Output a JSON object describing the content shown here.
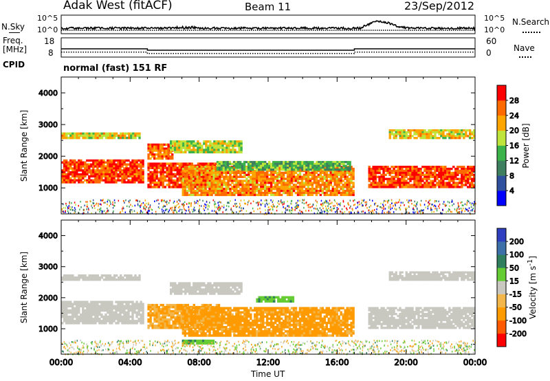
{
  "header": {
    "station": "Adak West (fitACF)",
    "beam": "Beam 11",
    "date": "23/Sep/2012"
  },
  "aux_panels": {
    "nsky_label": "N.Sky",
    "nsearch_label": "N.Search",
    "noise_ticks": [
      "10^5",
      "10^0"
    ],
    "freq_label": "Freq.",
    "freq_unit": "[MHz]",
    "freq_ticks": [
      "18",
      "8"
    ],
    "nave_label": "Nave",
    "nave_ticks": [
      "60",
      "0"
    ],
    "cpid_label": "CPID",
    "cpid_value": "normal (fast) 151 RF"
  },
  "colors": {
    "power_scale": [
      "#0000ff",
      "#2f4f9f",
      "#3e7f5f",
      "#3cb24a",
      "#bfe43c",
      "#ffa500",
      "#ff6a00",
      "#ff0000"
    ],
    "velocity_scale": [
      "#ff0000",
      "#ff5a00",
      "#ff9a00",
      "#f2b64a",
      "#c8c8c0",
      "#66cc33",
      "#2f7f5f",
      "#3d6fa8",
      "#2f3fbf"
    ]
  },
  "chart_data": [
    {
      "type": "heatmap",
      "title": "Power",
      "xlabel": "Time UT",
      "ylabel": "Slant Range [km]",
      "x_ticks": [
        "00:00",
        "04:00",
        "08:00",
        "12:00",
        "16:00",
        "20:00",
        "00:00"
      ],
      "x_range_hours": [
        0,
        24
      ],
      "y_ticks": [
        1000,
        2000,
        3000,
        4000
      ],
      "ylim": [
        180,
        4500
      ],
      "colorbar_label": "Power [dB]",
      "colorbar_ticks": [
        4,
        8,
        12,
        16,
        20,
        24,
        28
      ],
      "colorbar_range": [
        0,
        32
      ],
      "echo_regions": [
        {
          "t": [
            0,
            4.8
          ],
          "range_km": [
            1150,
            1900
          ],
          "value": 28
        },
        {
          "t": [
            0,
            4.6
          ],
          "range_km": [
            2550,
            2750
          ],
          "value": 20
        },
        {
          "t": [
            5,
            9.2
          ],
          "range_km": [
            1000,
            1800
          ],
          "value": 28
        },
        {
          "t": [
            5,
            6.5
          ],
          "range_km": [
            1900,
            2400
          ],
          "value": 26
        },
        {
          "t": [
            6.3,
            10.5
          ],
          "range_km": [
            2100,
            2500
          ],
          "value": 18
        },
        {
          "t": [
            7,
            17
          ],
          "range_km": [
            750,
            1700
          ],
          "value": 24
        },
        {
          "t": [
            9,
            16.8
          ],
          "range_km": [
            1550,
            1850
          ],
          "value": 14
        },
        {
          "t": [
            17.8,
            24
          ],
          "range_km": [
            1000,
            1700
          ],
          "value": 28
        },
        {
          "t": [
            19,
            24
          ],
          "range_km": [
            2550,
            2850
          ],
          "value": 20
        }
      ]
    },
    {
      "type": "heatmap",
      "title": "Velocity",
      "xlabel": "Time UT",
      "ylabel": "Slant Range [km]",
      "x_ticks": [
        "00:00",
        "04:00",
        "08:00",
        "12:00",
        "16:00",
        "20:00",
        "00:00"
      ],
      "x_range_hours": [
        0,
        24
      ],
      "y_ticks": [
        1000,
        2000,
        3000,
        4000
      ],
      "ylim": [
        180,
        4500
      ],
      "colorbar_label": "Velocity [m s^-1]",
      "colorbar_ticks": [
        200,
        100,
        50,
        15,
        -15,
        -50,
        -100,
        -200
      ],
      "echo_regions": [
        {
          "t": [
            0,
            4.8
          ],
          "range_km": [
            1150,
            1900
          ],
          "value": 0
        },
        {
          "t": [
            0,
            4.6
          ],
          "range_km": [
            2550,
            2750
          ],
          "value": 0
        },
        {
          "t": [
            5,
            9.2
          ],
          "range_km": [
            1000,
            1800
          ],
          "value": -50
        },
        {
          "t": [
            6.3,
            10.5
          ],
          "range_km": [
            2100,
            2500
          ],
          "value": 0
        },
        {
          "t": [
            7,
            17
          ],
          "range_km": [
            750,
            1700
          ],
          "value": -60
        },
        {
          "t": [
            11.3,
            13.5
          ],
          "range_km": [
            1850,
            2050
          ],
          "value": 40
        },
        {
          "t": [
            7,
            9
          ],
          "range_km": [
            500,
            650
          ],
          "value": 40
        },
        {
          "t": [
            17.8,
            24
          ],
          "range_km": [
            1000,
            1700
          ],
          "value": 0
        },
        {
          "t": [
            19,
            24
          ],
          "range_km": [
            2550,
            2850
          ],
          "value": 0
        }
      ]
    }
  ]
}
